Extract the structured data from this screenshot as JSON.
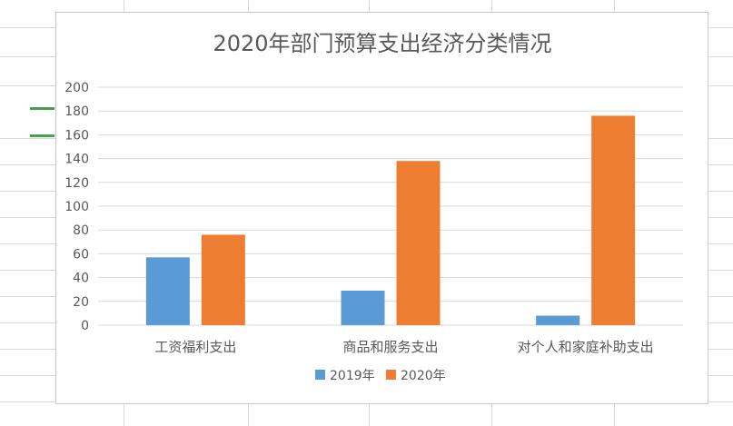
{
  "chart_data": {
    "type": "bar",
    "title": "2020年部门预算支出经济分类情况",
    "categories": [
      "工资福利支出",
      "商品和服务支出",
      "对个人和家庭补助支出"
    ],
    "series": [
      {
        "name": "2019年",
        "values": [
          57,
          29,
          8
        ],
        "color": "#5b9bd5"
      },
      {
        "name": "2020年",
        "values": [
          76,
          138,
          176
        ],
        "color": "#ed7d31"
      }
    ],
    "ylim": [
      0,
      200
    ],
    "yticks": [
      0,
      20,
      40,
      60,
      80,
      100,
      120,
      140,
      160,
      180,
      200
    ],
    "grid": true,
    "legend_position": "bottom"
  }
}
